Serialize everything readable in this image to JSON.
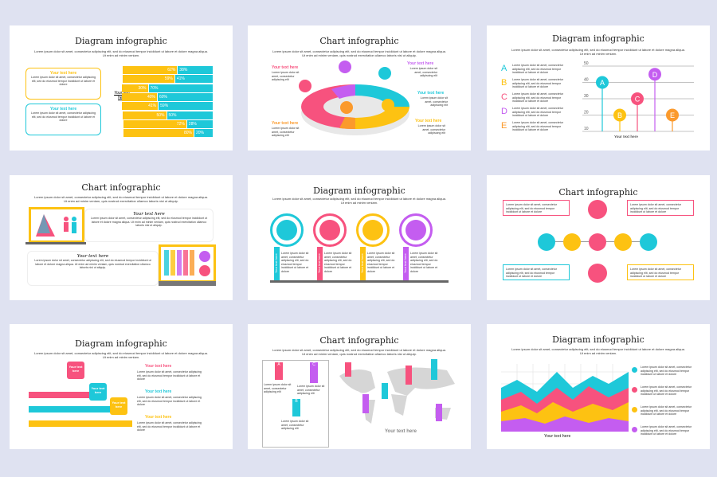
{
  "lorem_short": "Lorem ipsum dolor sit amet, consectetur adipiscing elit, sed do eiusmod tempor incididunt ut labore et dolore magna aliqua. Ut enim ad minim veniam.",
  "lorem_long": "Lorem ipsum dolor sit amet, consectetur adipiscing elit, sed do eiusmod tempor incididunt ut labore et dolore magna aliqua. Ut enim ad minim veniam, quis nostrud exercitation ullamco laboris nisi ut aliquip.",
  "lorem_item": "Lorem ipsum dolor sit amet, consectetur adipiscing elit, sed do eiusmod tempor incididunt ut labore et dolore",
  "lorem_pin": "Lorem ipsum dolor sit amet, consectetur adipiscing elit",
  "your_text": "Your text here",
  "colors": {
    "cyan": "#1ec8d9",
    "yellow": "#fdc212",
    "pink": "#f7527e",
    "purple": "#c45df0",
    "orange": "#fb9a2c",
    "bg": "#dfe2f1"
  },
  "slides": [
    {
      "title": "Diagram infographic",
      "label": "Your text here",
      "bars": [
        [
          62,
          38
        ],
        [
          59,
          41
        ],
        [
          30,
          70
        ],
        [
          40,
          60
        ],
        [
          41,
          59
        ],
        [
          50,
          50
        ],
        [
          72,
          28
        ],
        [
          80,
          20
        ]
      ]
    },
    {
      "title": "Chart infographic"
    },
    {
      "title": "Diagram infographic",
      "letters": [
        "A",
        "B",
        "C",
        "D",
        "E"
      ],
      "xlabel": "Your text here",
      "chart_data": {
        "type": "scatter",
        "categories": [
          "A",
          "B",
          "C",
          "D",
          "E"
        ],
        "values": [
          40,
          20,
          30,
          45,
          20
        ],
        "ylim": [
          10,
          50
        ],
        "yticks": [
          50,
          40,
          30,
          20,
          10
        ],
        "xlabel": "Your text here",
        "grid": true
      }
    },
    {
      "title": "Chart infographic"
    },
    {
      "title": "Diagram infographic"
    },
    {
      "title": "Chart infographic"
    },
    {
      "title": "Diagram infographic"
    },
    {
      "title": "Chart infographic",
      "letters": [
        "A",
        "B",
        "C"
      ]
    },
    {
      "title": "Diagram infographic"
    }
  ]
}
